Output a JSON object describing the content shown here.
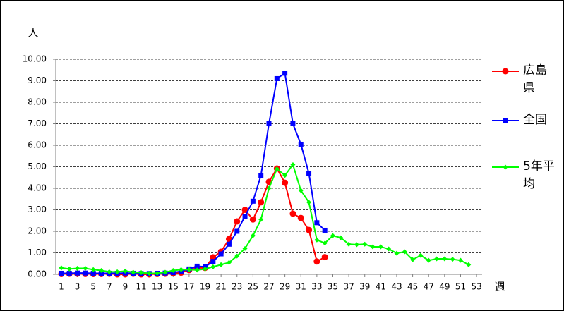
{
  "chart_data": {
    "type": "line",
    "y_label": "人",
    "x_label": "週",
    "x": [
      1,
      2,
      3,
      4,
      5,
      6,
      7,
      8,
      9,
      10,
      11,
      12,
      13,
      14,
      15,
      16,
      17,
      18,
      19,
      20,
      21,
      22,
      23,
      24,
      25,
      26,
      27,
      28,
      29,
      30,
      31,
      32,
      33,
      34,
      35,
      36,
      37,
      38,
      39,
      40,
      41,
      42,
      43,
      44,
      45,
      46,
      47,
      48,
      49,
      50,
      51,
      52
    ],
    "xlim": [
      0.3,
      53.7
    ],
    "xticks": [
      1,
      3,
      5,
      7,
      9,
      11,
      13,
      15,
      17,
      19,
      21,
      23,
      25,
      27,
      29,
      31,
      33,
      35,
      37,
      39,
      41,
      43,
      45,
      47,
      49,
      51,
      53
    ],
    "ylim": [
      0,
      10
    ],
    "yticks": [
      {
        "value": 0,
        "label": "0.00"
      },
      {
        "value": 1,
        "label": "1.00"
      },
      {
        "value": 2,
        "label": "2.00"
      },
      {
        "value": 3,
        "label": "3.00"
      },
      {
        "value": 4,
        "label": "4.00"
      },
      {
        "value": 5,
        "label": "5.00"
      },
      {
        "value": 6,
        "label": "6.00"
      },
      {
        "value": 7,
        "label": "7.00"
      },
      {
        "value": 8,
        "label": "8.00"
      },
      {
        "value": 9,
        "label": "9.00"
      },
      {
        "value": 10,
        "label": "10.00"
      }
    ],
    "grid": true,
    "series": [
      {
        "name": "広島県",
        "color": "#ff0000",
        "marker": "circle",
        "values": [
          0.02,
          0.03,
          0.03,
          0.02,
          0.02,
          0.02,
          0.03,
          0,
          0,
          0.03,
          0,
          0,
          0.02,
          0.03,
          0.05,
          0.08,
          0.2,
          0.3,
          0.3,
          0.79,
          1.05,
          1.64,
          2.46,
          3.0,
          2.55,
          3.35,
          4.3,
          4.92,
          4.26,
          2.82,
          2.62,
          2.06,
          0.6,
          0.8,
          null,
          null,
          null,
          null,
          null,
          null,
          null,
          null,
          null,
          null,
          null,
          null,
          null,
          null,
          null,
          null,
          null,
          null
        ]
      },
      {
        "name": "全国",
        "color": "#0000ff",
        "marker": "square",
        "values": [
          0.05,
          0.05,
          0.06,
          0.06,
          0.05,
          0.05,
          0.05,
          0.05,
          0.06,
          0.05,
          0.04,
          0.04,
          0.05,
          0.06,
          0.08,
          0.15,
          0.25,
          0.38,
          0.35,
          0.6,
          0.95,
          1.4,
          2.0,
          2.7,
          3.4,
          4.6,
          7.0,
          9.1,
          9.35,
          7.0,
          6.05,
          4.7,
          2.4,
          2.05,
          null,
          null,
          null,
          null,
          null,
          null,
          null,
          null,
          null,
          null,
          null,
          null,
          null,
          null,
          null,
          null,
          null,
          null
        ]
      },
      {
        "name": "5年平均",
        "color": "#00ff00",
        "marker": "diamond",
        "values": [
          0.3,
          0.25,
          0.28,
          0.28,
          0.22,
          0.18,
          0.12,
          0.12,
          0.15,
          0.1,
          0.08,
          0.05,
          0.05,
          0.1,
          0.18,
          0.22,
          0.22,
          0.2,
          0.25,
          0.35,
          0.45,
          0.55,
          0.85,
          1.2,
          1.8,
          2.55,
          4.0,
          4.9,
          4.6,
          5.1,
          3.9,
          3.35,
          1.6,
          1.45,
          1.8,
          1.7,
          1.4,
          1.38,
          1.4,
          1.28,
          1.28,
          1.18,
          0.98,
          1.05,
          0.68,
          0.88,
          0.65,
          0.72,
          0.72,
          0.7,
          0.65,
          0.45
        ]
      }
    ]
  }
}
